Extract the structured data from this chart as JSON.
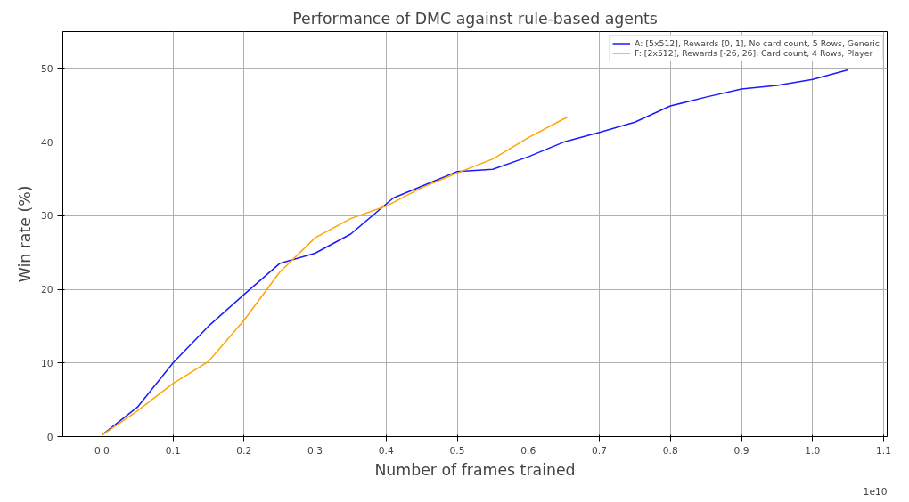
{
  "chart_data": {
    "type": "line",
    "title": "Performance of DMC against rule-based agents",
    "xlabel": "Number of frames trained",
    "ylabel": "Win rate (%)",
    "annotations": [
      "1e10"
    ],
    "xlim": [
      -0.055,
      1.105
    ],
    "ylim": [
      0,
      55
    ],
    "xticks": [
      {
        "value": 0,
        "label": "0.0"
      },
      0.1,
      0.2,
      0.3,
      0.4,
      0.5,
      0.6,
      0.7,
      0.8,
      0.9,
      {
        "value": 1,
        "label": "1.0"
      },
      1.1
    ],
    "yticks": [
      0,
      10,
      20,
      30,
      40,
      50
    ],
    "grid": true,
    "legend": "top right",
    "line_style": "solid",
    "marker": "none",
    "series": [
      {
        "name": "A: [5x512], Rewards [0, 1], No card count, 5 Rows, Generic",
        "color": "#1a1aff",
        "x": [
          0,
          0.05,
          0.1,
          0.15,
          0.2,
          0.25,
          0.3,
          0.35,
          0.41,
          0.45,
          0.5,
          0.55,
          0.6,
          0.65,
          0.7,
          0.75,
          0.8,
          0.85,
          0.9,
          0.95,
          1.0,
          1.05
        ],
        "values": [
          0.2,
          4.0,
          10.0,
          15.0,
          19.3,
          23.5,
          24.9,
          27.5,
          32.4,
          34.0,
          36.0,
          36.3,
          38.0,
          40.0,
          41.3,
          42.7,
          44.9,
          46.1,
          47.2,
          47.7,
          48.5,
          49.8
        ]
      },
      {
        "name": "F: [2x512], Rewards [-26, 26], Card count, 4 Rows, Player",
        "color": "#ffa500",
        "x": [
          0,
          0.05,
          0.1,
          0.15,
          0.2,
          0.25,
          0.3,
          0.35,
          0.4,
          0.45,
          0.5,
          0.55,
          0.6,
          0.655
        ],
        "values": [
          0.2,
          3.5,
          7.2,
          10.2,
          15.8,
          22.3,
          27.0,
          29.6,
          31.3,
          33.8,
          35.8,
          37.7,
          40.6,
          43.4
        ]
      }
    ]
  }
}
